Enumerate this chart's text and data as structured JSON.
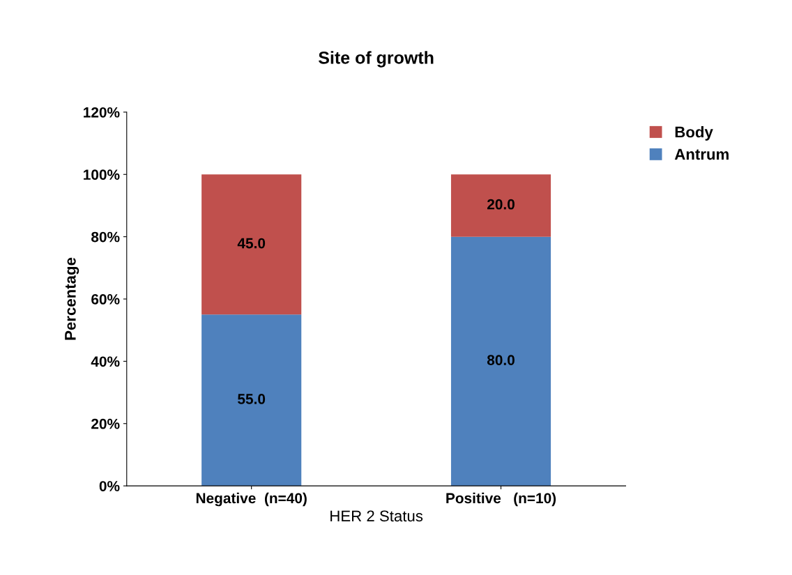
{
  "chart_data": {
    "type": "bar",
    "title": "Site of growth",
    "xlabel": "HER 2 Status",
    "ylabel": "Percentage",
    "categories": [
      "Negative  (n=40)",
      "Positive   (n=10)"
    ],
    "stacked": true,
    "series": [
      {
        "name": "Antrum",
        "color": "#4f81bd",
        "values": [
          55,
          80
        ],
        "value_labels": [
          "55.0",
          "80.0"
        ]
      },
      {
        "name": "Body",
        "color": "#c0504d",
        "values": [
          45,
          20
        ],
        "value_labels": [
          "45.0",
          "20.0"
        ]
      }
    ],
    "ylim": [
      0,
      120
    ],
    "yticks": [
      {
        "value": 0,
        "label": "0%"
      },
      {
        "value": 20,
        "label": "20%"
      },
      {
        "value": 40,
        "label": "40%"
      },
      {
        "value": 60,
        "label": "60%"
      },
      {
        "value": 80,
        "label": "80%"
      },
      {
        "value": 100,
        "label": "100%"
      },
      {
        "value": 120,
        "label": "120%"
      }
    ],
    "grid": false,
    "legend": "right"
  }
}
